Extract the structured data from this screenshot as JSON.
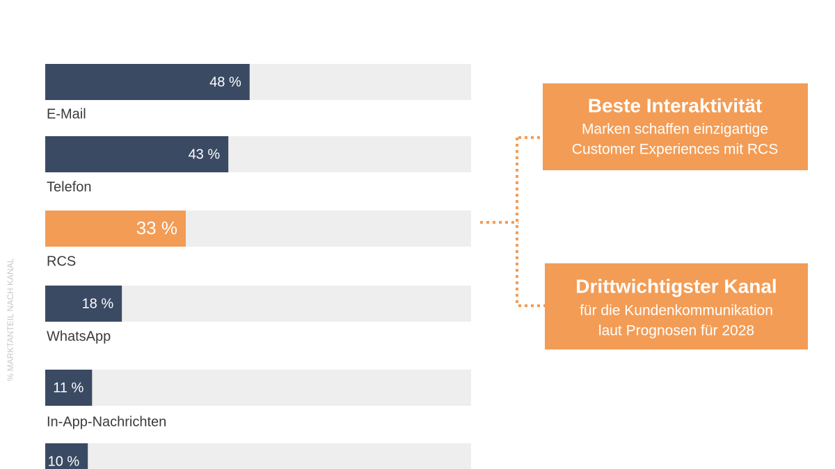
{
  "chart_data": {
    "type": "hbar",
    "ylabel": "% MARKTANTEIL NACH KANAL",
    "categories": [
      "E-Mail",
      "Telefon",
      "RCS",
      "WhatsApp",
      "In-App-Nachrichten",
      null
    ],
    "values": [
      48,
      43,
      33,
      18,
      11,
      10
    ],
    "value_labels": [
      "48 %",
      "43 %",
      "33 %",
      "18 %",
      "11 %",
      "10 %"
    ],
    "colors": [
      "#3b4a63",
      "#3b4a63",
      "#f39c55",
      "#3b4a63",
      "#3b4a63",
      "#3b4a63"
    ],
    "track_color": "#eeeeee",
    "xlim": [
      0,
      100
    ],
    "annotations": [
      {
        "title": "Beste Interaktivität",
        "lines": [
          "Marken schaffen einzigartige",
          "Customer Experiences mit RCS"
        ]
      },
      {
        "title": "Drittwichtigster Kanal",
        "lines": [
          "für die Kundenkommunikation",
          "laut Prognosen für 2028"
        ]
      }
    ]
  }
}
